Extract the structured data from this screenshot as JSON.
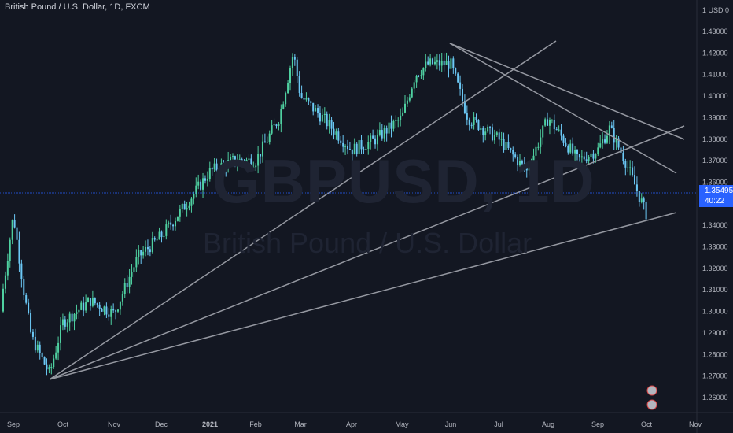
{
  "header": {
    "title": "British Pound / U.S. Dollar, 1D, FXCM"
  },
  "watermark": {
    "symbol": "GBPUSD, 1D",
    "description": "British Pound / U.S. Dollar"
  },
  "price_axis": {
    "currency_label": "1 USD 0"
  },
  "last_price": {
    "value": "1.35495",
    "countdown": "40:22"
  },
  "colors": {
    "background": "#131722",
    "up": "#4fd1a1",
    "down": "#6bc8f5",
    "trendline": "#9598a1",
    "last_price": "#2962ff",
    "axis_text": "#b2b5be"
  },
  "chart_data": {
    "type": "candlestick",
    "title": "British Pound / U.S. Dollar, 1D, FXCM",
    "ylim": [
      1.255,
      1.435
    ],
    "y_ticks": [
      "1.43000",
      "1.42000",
      "1.41000",
      "1.40000",
      "1.39000",
      "1.38000",
      "1.37000",
      "1.36000",
      "1.35000",
      "1.34000",
      "1.33000",
      "1.32000",
      "1.31000",
      "1.30000",
      "1.29000",
      "1.28000",
      "1.27000",
      "1.26000"
    ],
    "x_ticks": [
      "Sep",
      "Oct",
      "Nov",
      "Dec",
      "2021",
      "Feb",
      "Mar",
      "Apr",
      "May",
      "Jun",
      "Jul",
      "Aug",
      "Sep",
      "Oct",
      "Nov"
    ],
    "price_path": [
      [
        "Sep",
        1.3
      ],
      [
        "Sep 4",
        1.345
      ],
      [
        "Sep 8",
        1.31
      ],
      [
        "Sep 12",
        1.288
      ],
      [
        "Sep 23",
        1.271
      ],
      [
        "Oct",
        1.295
      ],
      [
        "Oct 15",
        1.305
      ],
      [
        "Nov",
        1.299
      ],
      [
        "Nov 15",
        1.325
      ],
      [
        "Dec",
        1.335
      ],
      [
        "Dec 15",
        1.35
      ],
      [
        "2021",
        1.365
      ],
      [
        "Jan 15",
        1.37
      ],
      [
        "Feb",
        1.37
      ],
      [
        "Feb 15",
        1.39
      ],
      [
        "Feb 24",
        1.42
      ],
      [
        "Mar",
        1.4
      ],
      [
        "Mar 15",
        1.39
      ],
      [
        "Apr",
        1.375
      ],
      [
        "Apr 15",
        1.38
      ],
      [
        "May",
        1.39
      ],
      [
        "May 10",
        1.41
      ],
      [
        "May 20",
        1.415
      ],
      [
        "Jun",
        1.415
      ],
      [
        "Jun 15",
        1.39
      ],
      [
        "Jul",
        1.38
      ],
      [
        "Jul 20",
        1.365
      ],
      [
        "Aug",
        1.39
      ],
      [
        "Aug 20",
        1.37
      ],
      [
        "Sep",
        1.375
      ],
      [
        "Sep 15",
        1.385
      ],
      [
        "Sep 25",
        1.37
      ],
      [
        "Oct",
        1.345
      ],
      [
        "Oct 2",
        1.35495
      ]
    ],
    "last_price": 1.35495,
    "grid": false,
    "legend": "none"
  }
}
